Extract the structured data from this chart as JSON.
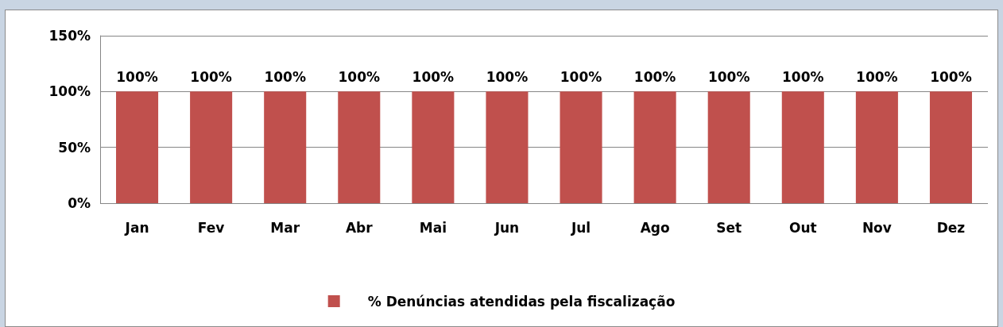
{
  "chart_data": {
    "type": "bar",
    "categories": [
      "Jan",
      "Fev",
      "Mar",
      "Abr",
      "Mai",
      "Jun",
      "Jul",
      "Ago",
      "Set",
      "Out",
      "Nov",
      "Dez"
    ],
    "series": [
      {
        "name": "% Denúncias atendidas pela fiscalização",
        "color": "#c0504d",
        "values": [
          100,
          100,
          100,
          100,
          100,
          100,
          100,
          100,
          100,
          100,
          100,
          100
        ],
        "value_labels": [
          "100%",
          "100%",
          "100%",
          "100%",
          "100%",
          "100%",
          "100%",
          "100%",
          "100%",
          "100%",
          "100%",
          "100%"
        ]
      }
    ],
    "ylim": [
      0,
      150
    ],
    "yticks": [
      {
        "value": 0,
        "label": "0%"
      },
      {
        "value": 50,
        "label": "50%"
      },
      {
        "value": 100,
        "label": "100%"
      },
      {
        "value": 150,
        "label": "150%"
      }
    ],
    "grid": "y",
    "legend": "bottom"
  }
}
